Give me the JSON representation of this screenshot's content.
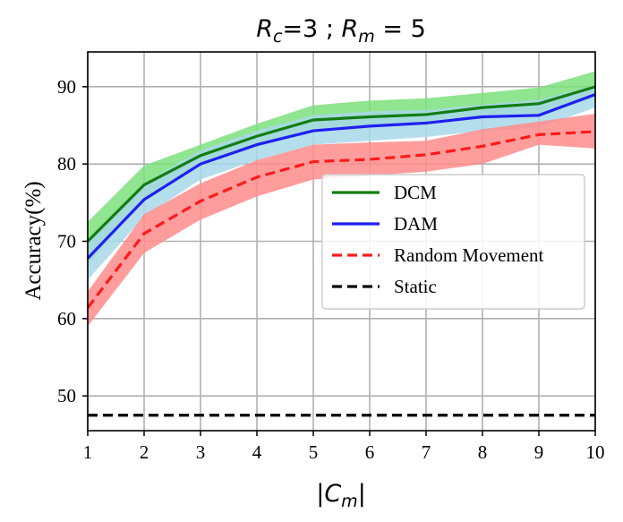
{
  "chart_data": {
    "type": "line",
    "title": "R_c=3 ; R_m = 5",
    "title_parts": {
      "r1": "R",
      "s1": "c",
      "mid": "=3 ; ",
      "r2": "R",
      "s2": "m",
      "end": " = 5"
    },
    "xlabel": "|C_m|",
    "xlabel_parts": {
      "bar_left": "|",
      "c": "C",
      "sub": "m",
      "bar_right": "|"
    },
    "ylabel": "Accuracy(%)",
    "x": [
      1,
      2,
      3,
      4,
      5,
      6,
      7,
      8,
      9,
      10
    ],
    "xlim": [
      1,
      10
    ],
    "ylim": [
      45.5,
      94.5
    ],
    "xticks": [
      "1",
      "2",
      "3",
      "4",
      "5",
      "6",
      "7",
      "8",
      "9",
      "10"
    ],
    "yticks": [
      50,
      60,
      70,
      80,
      90
    ],
    "ytick_labels": [
      "50",
      "60",
      "70",
      "80",
      "90"
    ],
    "grid": true,
    "legend_position": "center-right",
    "series": [
      {
        "name": "DCM",
        "color": "#127d12",
        "band_color": "#7ce07c",
        "style": "solid",
        "values": [
          70,
          77.3,
          81.1,
          83.6,
          85.7,
          86.1,
          86.4,
          87.3,
          87.8,
          90
        ],
        "lower": [
          67,
          75.5,
          79.8,
          82.2,
          84.3,
          84.8,
          85.3,
          86.0,
          86.5,
          88.5
        ],
        "upper": [
          72.5,
          79.8,
          82.5,
          85.2,
          87.6,
          88.2,
          88.5,
          89.2,
          89.9,
          92.0
        ]
      },
      {
        "name": "DAM",
        "color": "#1f1ff0",
        "band_color": "#a8d8ea",
        "style": "solid",
        "values": [
          67.8,
          75.4,
          80,
          82.5,
          84.3,
          84.9,
          85.3,
          86.1,
          86.3,
          89
        ],
        "lower": [
          65.0,
          73.2,
          78.0,
          80.5,
          82.5,
          83.0,
          83.5,
          84.3,
          84.7,
          87.3
        ],
        "upper": [
          70.0,
          77.5,
          81.8,
          84.3,
          86.3,
          86.8,
          87.0,
          87.7,
          88.3,
          90.2
        ]
      },
      {
        "name": "Random Movement",
        "color": "#ff1a1a",
        "band_color": "#ff8c8c",
        "style": "dashed",
        "values": [
          61.4,
          71,
          75.2,
          78.3,
          80.3,
          80.6,
          81.2,
          82.3,
          83.8,
          84.2
        ],
        "lower": [
          59.0,
          68.5,
          72.8,
          75.8,
          78.0,
          78.5,
          79.0,
          80.0,
          82.5,
          82.0
        ],
        "upper": [
          63.5,
          73.5,
          77.5,
          80.5,
          82.5,
          82.8,
          83.0,
          84.5,
          85.5,
          86.5
        ]
      },
      {
        "name": "Static",
        "color": "#000000",
        "style": "dashed",
        "values": [
          47.5,
          47.5,
          47.5,
          47.5,
          47.5,
          47.5,
          47.5,
          47.5,
          47.5,
          47.5
        ]
      }
    ]
  }
}
